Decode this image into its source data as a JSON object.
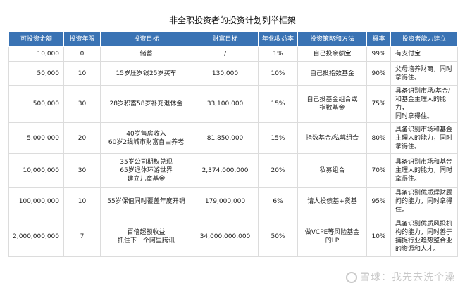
{
  "title": "非全职投资者的投资计划列举框架",
  "headers": [
    "可投资金额",
    "投资年限",
    "投资目标",
    "财富目标",
    "年化收益率",
    "投资策略和方法",
    "概率",
    "投资者能力建立"
  ],
  "rows": [
    {
      "amount": "10,000",
      "years": "0",
      "goal": [
        "储蓄"
      ],
      "wealth": "/",
      "rate": "1%",
      "strategy": [
        "自己投余额宝"
      ],
      "prob": "99%",
      "ability": [
        "有支付宝"
      ]
    },
    {
      "amount": "50,000",
      "years": "10",
      "goal": [
        "15岁压岁钱25岁买车"
      ],
      "wealth": "130,000",
      "rate": "10%",
      "strategy": [
        "自己投指数基金"
      ],
      "prob": "90%",
      "ability": [
        "父母培养财商，同时",
        "拿得住。"
      ]
    },
    {
      "amount": "500,000",
      "years": "30",
      "goal": [
        "28岁积蓄58岁补充退休金"
      ],
      "wealth": "33,100,000",
      "rate": "15%",
      "strategy": [
        "自己投基金组合或",
        "指数基金"
      ],
      "prob": "75%",
      "ability": [
        "具备识别市场/基金/",
        "和基金主理人的能力，",
        "同时拿得住。"
      ]
    },
    {
      "amount": "5,000,000",
      "years": "20",
      "goal": [
        "40岁售房收入",
        "60岁2线城市财富自由养老"
      ],
      "wealth": "81,850,000",
      "rate": "15%",
      "strategy": [
        "指数基金/私募组合"
      ],
      "prob": "80%",
      "ability": [
        "具备识别市场和基金",
        "主理人的能力，同时",
        "拿得住。"
      ]
    },
    {
      "amount": "10,000,000",
      "years": "30",
      "goal": [
        "35岁公司期权兑现",
        "65岁退休环游世界",
        "建立儿童基金"
      ],
      "wealth": "2,374,000,000",
      "rate": "20%",
      "strategy": [
        "私募组合"
      ],
      "prob": "70%",
      "ability": [
        "具备识别市场和基金",
        "主理人的能力，同时",
        "拿得住。"
      ]
    },
    {
      "amount": "100,000,000",
      "years": "10",
      "goal": [
        "55岁保值同时覆盖年度开销"
      ],
      "wealth": "179,000,000",
      "rate": "6%",
      "strategy": [
        "请人投债基+货基"
      ],
      "prob": "95%",
      "ability": [
        "具备识别优质理财顾",
        "问的能力，同时拿得",
        "住。"
      ]
    },
    {
      "amount": "2,000,000,000",
      "years": "7",
      "goal": [
        "百倍超额收益",
        "抓住下一个阿里腾讯"
      ],
      "wealth": "34,000,000,000",
      "rate": "50%",
      "strategy": [
        "做VCPE等风险基金",
        "的LP"
      ],
      "prob": "10%",
      "ability": [
        "具备识别优质风投机",
        "构的能力，同时善于",
        "捕捉行业趋势整合业",
        "的资源和人才。"
      ]
    }
  ],
  "watermark": "雪球：我先去洗个澡"
}
